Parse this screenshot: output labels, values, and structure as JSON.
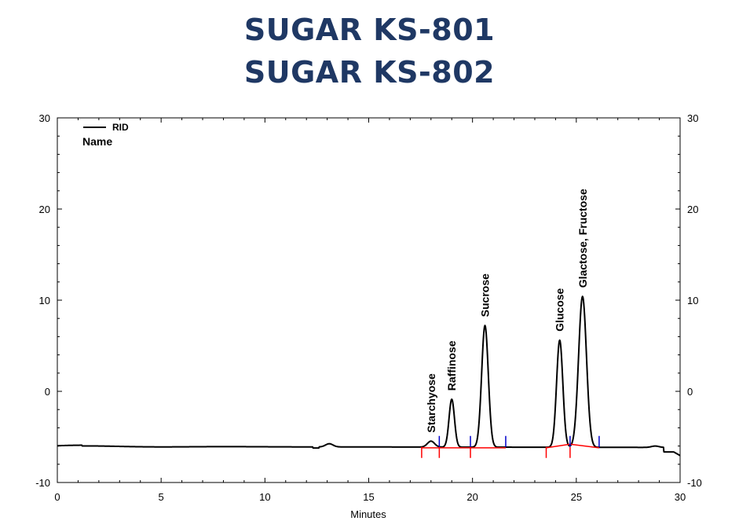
{
  "header": {
    "title_line1": "SUGAR KS-801",
    "title_line2": "SUGAR KS-802"
  },
  "colors": {
    "title": "#1f3864",
    "trace": "#000000",
    "baseline": "#ff0000",
    "start_marker": "#ff0000",
    "end_marker": "#0000cc"
  },
  "chart_data": {
    "type": "line",
    "xlabel": "Minutes",
    "ylabel": "",
    "xlim": [
      0,
      30
    ],
    "ylim": [
      -10,
      30
    ],
    "x_ticks": [
      0,
      5,
      10,
      15,
      20,
      25,
      30
    ],
    "y_ticks": [
      -10,
      0,
      10,
      20,
      30
    ],
    "x_tick_labels": [
      "0",
      "5",
      "10",
      "15",
      "20",
      "25",
      "30"
    ],
    "y_tick_labels": [
      "-10",
      "0",
      "10",
      "20",
      "30"
    ],
    "legend": {
      "series_label": "RID",
      "sub_label": "Name",
      "placement": "top-left"
    },
    "grid": false,
    "baseline_offset": -6.05,
    "peaks": [
      {
        "name": "Starchyose",
        "rt": 18.0,
        "height": -5.4,
        "start": 17.55,
        "end": 18.4
      },
      {
        "name": "Raffinose",
        "rt": 19.0,
        "height": -0.8,
        "start": 18.4,
        "end": 19.9
      },
      {
        "name": "Sucrose",
        "rt": 20.6,
        "height": 7.3,
        "start": 19.9,
        "end": 21.6
      },
      {
        "name": "Glucose",
        "rt": 24.2,
        "height": 5.7,
        "start": 23.55,
        "end": 24.7
      },
      {
        "name": "Glactose, Fructose",
        "rt": 25.3,
        "height": 10.5,
        "start": 24.7,
        "end": 26.1
      }
    ],
    "minor_peaks": [
      {
        "rt": 13.1,
        "height": -5.7
      },
      {
        "rt": 28.8,
        "height": -5.9
      }
    ],
    "integration_baselines": [
      {
        "x": [
          17.55,
          21.6
        ],
        "y": [
          -6.2,
          -6.2
        ]
      },
      {
        "x": [
          23.55,
          24.7,
          26.1
        ],
        "y": [
          -6.2,
          -5.8,
          -6.2
        ]
      }
    ]
  }
}
